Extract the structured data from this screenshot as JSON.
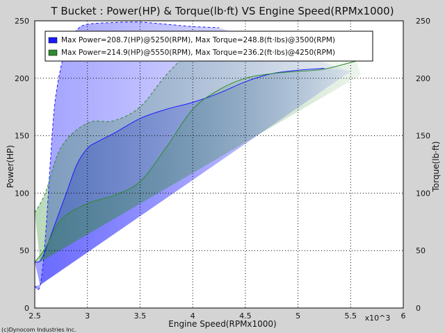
{
  "chart_data": {
    "type": "line",
    "title": "T Bucket : Power(HP) & Torque(lb·ft) VS Engine Speed(RPMx1000)",
    "xlabel": "Engine Speed(RPMx1000)",
    "ylabel": "Power(HP)",
    "y2label": "Torque(lb·ft)",
    "x_multiplier_label": "x10^3",
    "xlim": [
      2.5,
      6
    ],
    "ylim": [
      0,
      250
    ],
    "y2lim": [
      0,
      250
    ],
    "xticks": [
      2.5,
      3,
      3.5,
      4,
      4.5,
      5,
      5.5,
      6
    ],
    "xtick_labels": [
      "2.5",
      "3",
      "3.5",
      "4",
      "4.5",
      "5",
      "5.5",
      "6"
    ],
    "yticks": [
      0,
      50,
      100,
      150,
      200,
      250
    ],
    "ytick_labels": [
      "0",
      "50",
      "100",
      "150",
      "200",
      "250"
    ],
    "y2tick_labels": [
      "0",
      "50",
      "100",
      "150",
      "200",
      "250"
    ],
    "grid": true,
    "legend_position": "top",
    "series": [
      {
        "name": "Max Power=208.7(HP)@5250(RPM), Max Torque=248.8(ft·lbs)@3500(RPM)",
        "color": "#1a1aff",
        "power": {
          "x": [
            2.5,
            2.55,
            2.6,
            2.7,
            2.8,
            2.9,
            3.0,
            3.1,
            3.25,
            3.5,
            3.75,
            4.0,
            4.25,
            4.5,
            4.75,
            5.0,
            5.25
          ],
          "y": [
            40,
            41,
            50,
            75,
            100,
            125,
            139,
            145,
            152,
            165,
            173,
            179,
            187,
            197,
            204,
            207,
            208.7
          ]
        },
        "torque": {
          "x": [
            2.5,
            2.55,
            2.6,
            2.65,
            2.7,
            2.8,
            2.9,
            3.0,
            3.25,
            3.5,
            3.75,
            4.0,
            4.25
          ],
          "y": [
            19,
            19,
            60,
            130,
            185,
            228,
            242,
            247,
            248.5,
            248.8,
            247,
            245,
            244
          ]
        }
      },
      {
        "name": "Max Power=214.9(HP)@5550(RPM), Max Torque=236.2(ft·lbs)@4250(RPM)",
        "color": "#2e8b2e",
        "power": {
          "x": [
            2.5,
            2.6,
            2.75,
            3.0,
            3.25,
            3.5,
            3.75,
            4.0,
            4.25,
            4.5,
            4.75,
            5.0,
            5.25,
            5.55
          ],
          "y": [
            40,
            52,
            77,
            91,
            98,
            110,
            140,
            173,
            190,
            200,
            204,
            206,
            208,
            214.9
          ]
        },
        "torque": {
          "x": [
            2.5,
            2.6,
            2.75,
            3.0,
            3.25,
            3.5,
            3.75,
            4.0,
            4.25,
            4.5,
            5.0,
            5.5
          ],
          "y": [
            83,
            100,
            140,
            161,
            163,
            175,
            203,
            225,
            236.2,
            234,
            230,
            228
          ]
        }
      }
    ],
    "footer": "(c)Dynocom Industries Inc."
  }
}
